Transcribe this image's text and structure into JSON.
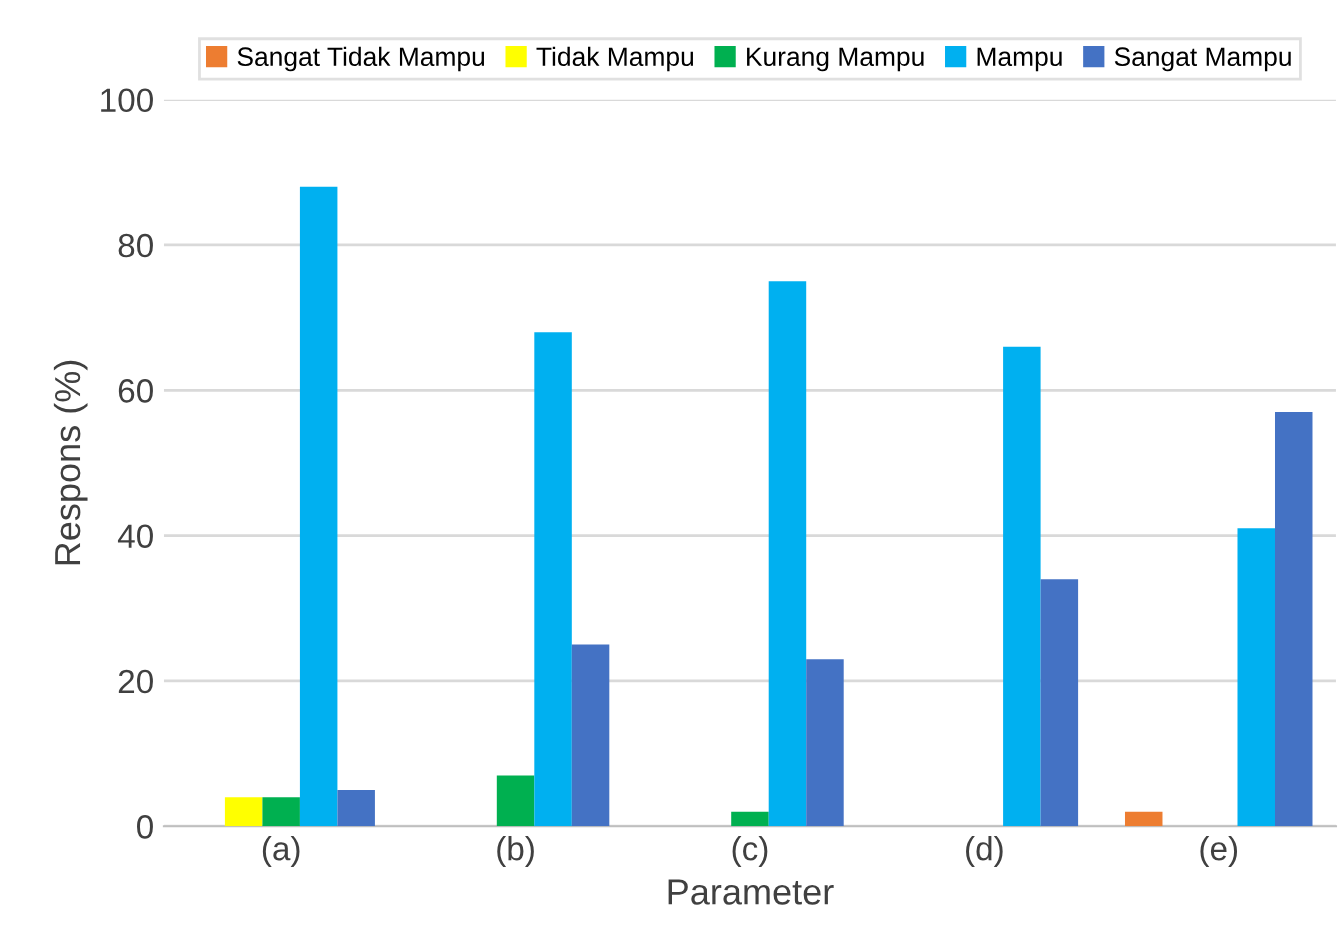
{
  "chart_data": {
    "type": "bar",
    "xlabel": "Parameter",
    "ylabel": "Respons (%)",
    "categories": [
      "(a)",
      "(b)",
      "(c)",
      "(d)",
      "(e)"
    ],
    "series": [
      {
        "name": "Sangat Tidak Mampu",
        "color": "#ed7d31",
        "values": [
          0,
          0,
          0,
          0,
          2
        ]
      },
      {
        "name": "Tidak Mampu",
        "color": "#ffff00",
        "values": [
          4,
          0,
          0,
          0,
          0
        ]
      },
      {
        "name": "Kurang Mampu",
        "color": "#00b050",
        "values": [
          4,
          7,
          2,
          0,
          0
        ]
      },
      {
        "name": "Mampu",
        "color": "#00b0f0",
        "values": [
          88,
          68,
          75,
          66,
          41
        ]
      },
      {
        "name": "Sangat Mampu",
        "color": "#4472c4",
        "values": [
          5,
          25,
          23,
          34,
          57
        ]
      }
    ],
    "ylim": [
      0,
      100
    ],
    "yticks": [
      0,
      20,
      40,
      60,
      80,
      100
    ],
    "grid": "y",
    "legend": "top"
  }
}
